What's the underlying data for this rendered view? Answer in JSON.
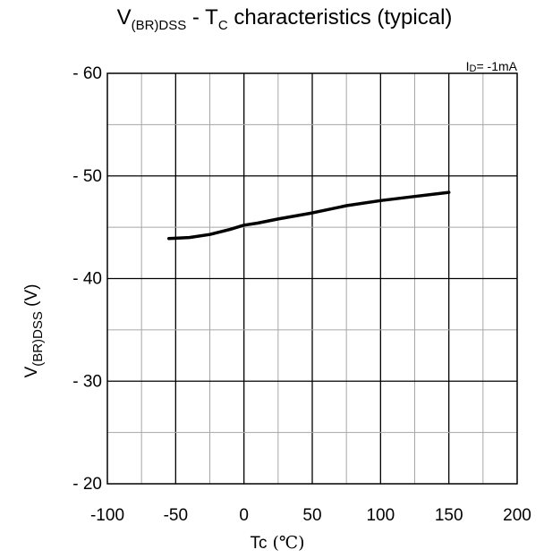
{
  "chart_data": {
    "type": "line",
    "title": {
      "main": "V",
      "sub": "(BR)DSS",
      "sep": " - T",
      "sub2": "C",
      "rest": "  characteristics (typical)"
    },
    "condition": "ID= -1mA",
    "condition_parts": {
      "main": "I",
      "sub": "D",
      "rest": "= -1mA"
    },
    "xlabel": {
      "text": "Tc",
      "unit": " (℃)"
    },
    "ylabel": {
      "main": "V",
      "sub": "(BR)DSS",
      "rest": " (V)"
    },
    "xlim": [
      -100,
      200
    ],
    "ylim": [
      -20,
      -60
    ],
    "x_ticks": [
      -100,
      -50,
      0,
      50,
      100,
      150,
      200
    ],
    "x_tick_labels": [
      "-100",
      "-50",
      "0",
      "50",
      "100",
      "150",
      "200"
    ],
    "y_ticks": [
      -60,
      -50,
      -40,
      -30,
      -20
    ],
    "y_tick_labels": [
      "- 60",
      "- 50",
      "- 40",
      "- 30",
      "- 20"
    ],
    "grid": true,
    "x_minor_step": 25,
    "y_minor_step": 5,
    "series": [
      {
        "x": [
          -55,
          -40,
          -25,
          -10,
          0,
          10,
          25,
          50,
          75,
          100,
          125,
          150
        ],
        "y": [
          -43.9,
          -44.0,
          -44.3,
          -44.8,
          -45.2,
          -45.4,
          -45.8,
          -46.4,
          -47.1,
          -47.6,
          -48.0,
          -48.4
        ],
        "color": "#000000"
      }
    ]
  }
}
